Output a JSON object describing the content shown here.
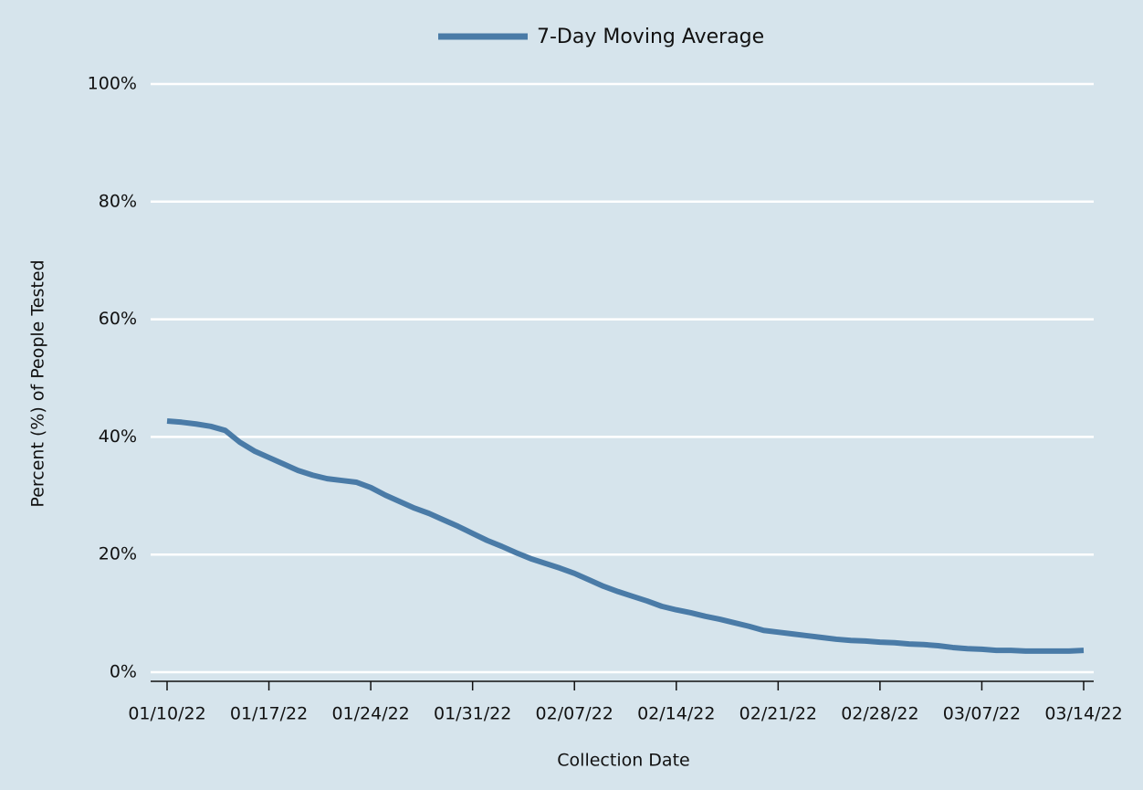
{
  "chart_data": {
    "type": "line",
    "xlabel": "Collection Date",
    "ylabel": "Percent (%) of People Tested",
    "x": [
      "01/10/22",
      "01/11/22",
      "01/12/22",
      "01/13/22",
      "01/14/22",
      "01/15/22",
      "01/16/22",
      "01/17/22",
      "01/18/22",
      "01/19/22",
      "01/20/22",
      "01/21/22",
      "01/22/22",
      "01/23/22",
      "01/24/22",
      "01/25/22",
      "01/26/22",
      "01/27/22",
      "01/28/22",
      "01/29/22",
      "01/30/22",
      "01/31/22",
      "02/01/22",
      "02/02/22",
      "02/03/22",
      "02/04/22",
      "02/05/22",
      "02/06/22",
      "02/07/22",
      "02/08/22",
      "02/09/22",
      "02/10/22",
      "02/11/22",
      "02/12/22",
      "02/13/22",
      "02/14/22",
      "02/15/22",
      "02/16/22",
      "02/17/22",
      "02/18/22",
      "02/19/22",
      "02/20/22",
      "02/21/22",
      "02/22/22",
      "02/23/22",
      "02/24/22",
      "02/25/22",
      "02/26/22",
      "02/27/22",
      "02/28/22",
      "03/01/22",
      "03/02/22",
      "03/03/22",
      "03/04/22",
      "03/05/22",
      "03/06/22",
      "03/07/22",
      "03/08/22",
      "03/09/22",
      "03/10/22",
      "03/11/22",
      "03/12/22",
      "03/13/22",
      "03/14/22"
    ],
    "xticks": [
      "01/10/22",
      "01/17/22",
      "01/24/22",
      "01/31/22",
      "02/07/22",
      "02/14/22",
      "02/21/22",
      "02/28/22",
      "03/07/22",
      "03/14/22"
    ],
    "series": [
      {
        "name": "7-Day Moving Average",
        "color": "#4a7ba7",
        "values": [
          42.7,
          42.5,
          42.2,
          41.8,
          41.1,
          39.1,
          37.6,
          36.5,
          35.4,
          34.3,
          33.5,
          32.9,
          32.6,
          32.3,
          31.4,
          30.1,
          29.0,
          27.9,
          27.0,
          25.9,
          24.8,
          23.6,
          22.4,
          21.4,
          20.3,
          19.3,
          18.5,
          17.7,
          16.8,
          15.7,
          14.6,
          13.7,
          12.9,
          12.1,
          11.2,
          10.6,
          10.1,
          9.5,
          9.0,
          8.4,
          7.8,
          7.1,
          6.8,
          6.5,
          6.2,
          5.9,
          5.6,
          5.4,
          5.3,
          5.1,
          5.0,
          4.8,
          4.7,
          4.5,
          4.2,
          4.0,
          3.9,
          3.7,
          3.7,
          3.6,
          3.6,
          3.6,
          3.6,
          3.7
        ]
      }
    ],
    "ylim": [
      0,
      100
    ],
    "yticks": [
      {
        "value": 0,
        "label": "0%"
      },
      {
        "value": 20,
        "label": "20%"
      },
      {
        "value": 40,
        "label": "40%"
      },
      {
        "value": 60,
        "label": "60%"
      },
      {
        "value": 80,
        "label": "80%"
      },
      {
        "value": 100,
        "label": "100%"
      }
    ],
    "grid": true,
    "legend": "top"
  }
}
